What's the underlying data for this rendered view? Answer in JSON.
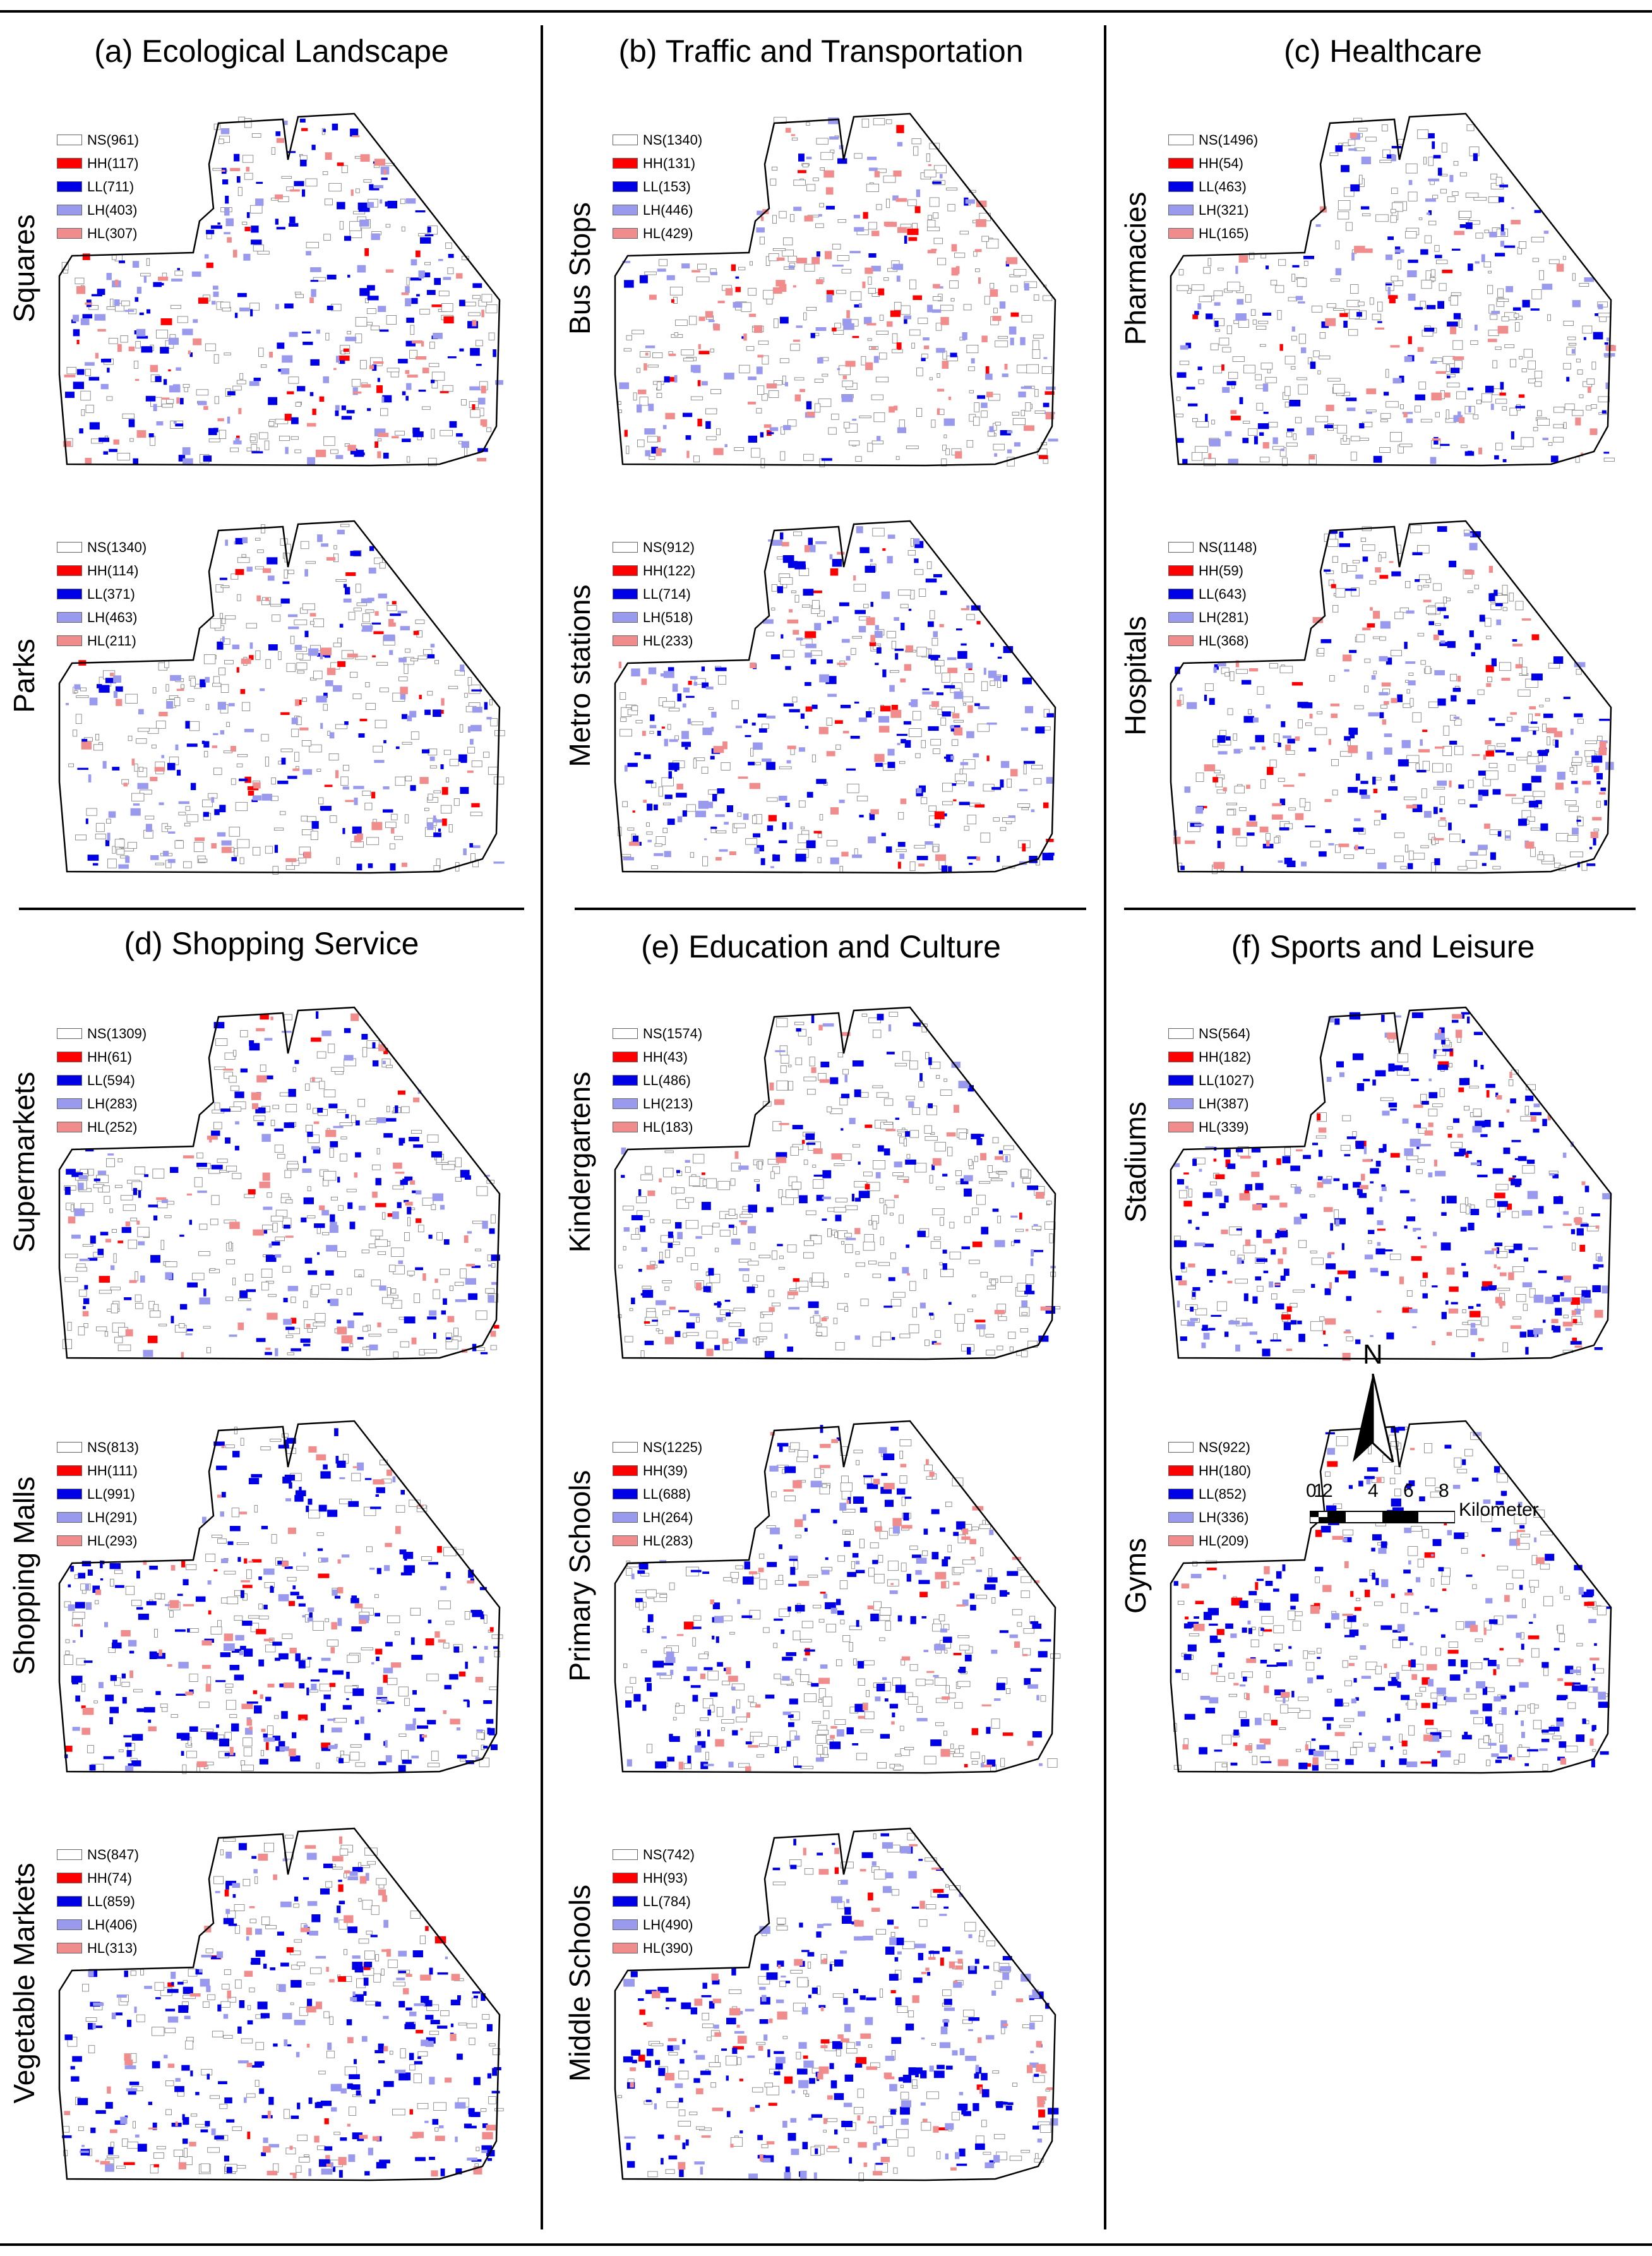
{
  "colors": {
    "NS": "#ffffff",
    "HH": "#ff0000",
    "LL": "#0000e6",
    "LH": "#9999ee",
    "HL": "#f08c8c"
  },
  "categories": [
    {
      "title": "(a) Ecological Landscape",
      "maps": [
        {
          "label": "Squares",
          "legend": [
            "NS(961)",
            "HH(117)",
            "LL(711)",
            "LH(403)",
            "HL(307)"
          ]
        },
        {
          "label": "Parks",
          "legend": [
            "NS(1340)",
            "HH(114)",
            "LL(371)",
            "LH(463)",
            "HL(211)"
          ]
        }
      ]
    },
    {
      "title": "(b) Traffic and Transportation",
      "maps": [
        {
          "label": "Bus Stops",
          "legend": [
            "NS(1340)",
            "HH(131)",
            "LL(153)",
            "LH(446)",
            "HL(429)"
          ]
        },
        {
          "label": "Metro stations",
          "legend": [
            "NS(912)",
            "HH(122)",
            "LL(714)",
            "LH(518)",
            "HL(233)"
          ]
        }
      ]
    },
    {
      "title": "(c) Healthcare",
      "maps": [
        {
          "label": "Pharmacies",
          "legend": [
            "NS(1496)",
            "HH(54)",
            "LL(463)",
            "LH(321)",
            "HL(165)"
          ]
        },
        {
          "label": "Hospitals",
          "legend": [
            "NS(1148)",
            "HH(59)",
            "LL(643)",
            "LH(281)",
            "HL(368)"
          ]
        }
      ]
    },
    {
      "title": "(d) Shopping Service",
      "maps": [
        {
          "label": "Supermarkets",
          "legend": [
            "NS(1309)",
            "HH(61)",
            "LL(594)",
            "LH(283)",
            "HL(252)"
          ]
        },
        {
          "label": "Shopping Malls",
          "legend": [
            "NS(813)",
            "HH(111)",
            "LL(991)",
            "LH(291)",
            "HL(293)"
          ]
        },
        {
          "label": "Vegetable Markets",
          "legend": [
            "NS(847)",
            "HH(74)",
            "LL(859)",
            "LH(406)",
            "HL(313)"
          ]
        }
      ]
    },
    {
      "title": "(e) Education and Culture",
      "maps": [
        {
          "label": "Kindergartens",
          "legend": [
            "NS(1574)",
            "HH(43)",
            "LL(486)",
            "LH(213)",
            "HL(183)"
          ]
        },
        {
          "label": "Primary Schools",
          "legend": [
            "NS(1225)",
            "HH(39)",
            "LL(688)",
            "LH(264)",
            "HL(283)"
          ]
        },
        {
          "label": "Middle Schools",
          "legend": [
            "NS(742)",
            "HH(93)",
            "LL(784)",
            "LH(490)",
            "HL(390)"
          ]
        }
      ]
    },
    {
      "title": "(f) Sports and Leisure",
      "maps": [
        {
          "label": "Stadiums",
          "legend": [
            "NS(564)",
            "HH(182)",
            "LL(1027)",
            "LH(387)",
            "HL(339)"
          ]
        },
        {
          "label": "Gyms",
          "legend": [
            "NS(922)",
            "HH(180)",
            "LL(852)",
            "LH(336)",
            "HL(209)"
          ]
        }
      ]
    }
  ],
  "north_label": "N",
  "scale": {
    "ticks": [
      "0",
      "1",
      "2",
      "4",
      "6",
      "8"
    ],
    "unit": "Kilometer"
  }
}
